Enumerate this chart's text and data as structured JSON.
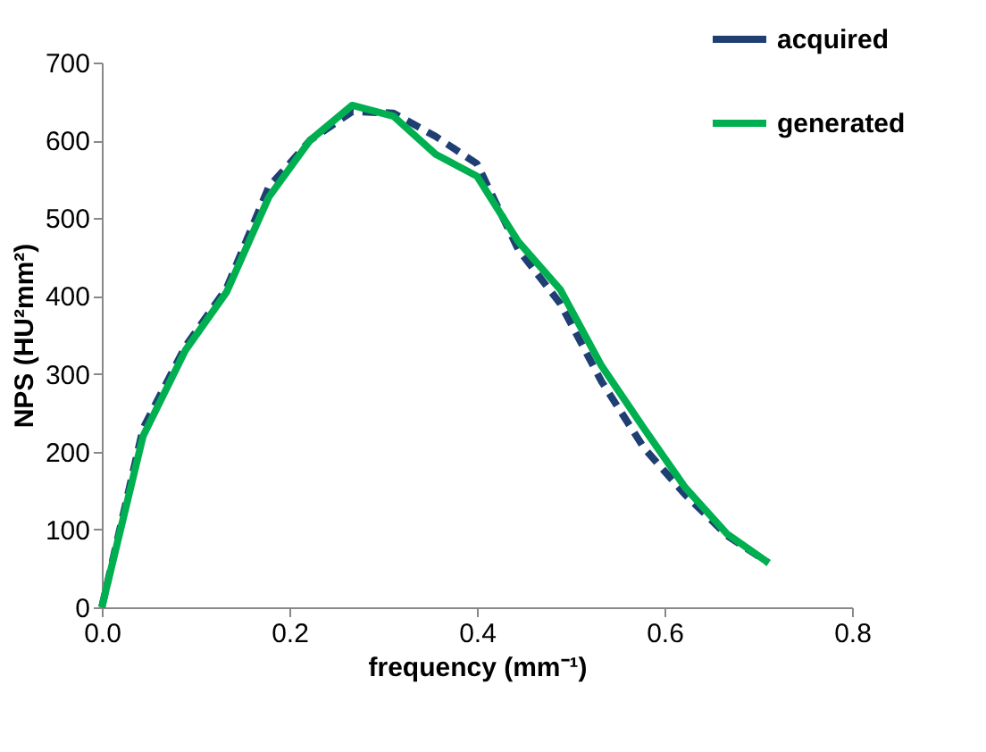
{
  "chart_data": {
    "type": "line",
    "xlabel": "frequency (mm⁻¹)",
    "ylabel": "NPS (HU²mm²)",
    "x": [
      0,
      0.044,
      0.089,
      0.133,
      0.178,
      0.222,
      0.267,
      0.311,
      0.356,
      0.4,
      0.444,
      0.489,
      0.533,
      0.578,
      0.622,
      0.667,
      0.711
    ],
    "series": [
      {
        "name": "acquired",
        "color": "#1f3f73",
        "line_style": "dashed",
        "values": [
          0,
          230,
          335,
          410,
          540,
          600,
          637,
          635,
          605,
          570,
          460,
          390,
          290,
          205,
          145,
          92,
          57
        ]
      },
      {
        "name": "generated",
        "color": "#00b050",
        "line_style": "solid",
        "values": [
          0,
          220,
          330,
          405,
          527,
          600,
          645,
          631,
          582,
          554,
          470,
          408,
          310,
          230,
          154,
          94,
          57
        ]
      }
    ],
    "xlim": [
      0,
      0.8
    ],
    "xticks": [
      {
        "value": 0,
        "label": "0.0"
      },
      0.2,
      0.4,
      0.6,
      0.8
    ],
    "ylim": [
      0,
      700
    ],
    "yticks": [
      0,
      100,
      200,
      300,
      400,
      500,
      600,
      700
    ],
    "grid": false,
    "legend": "top right",
    "marker": "none"
  }
}
